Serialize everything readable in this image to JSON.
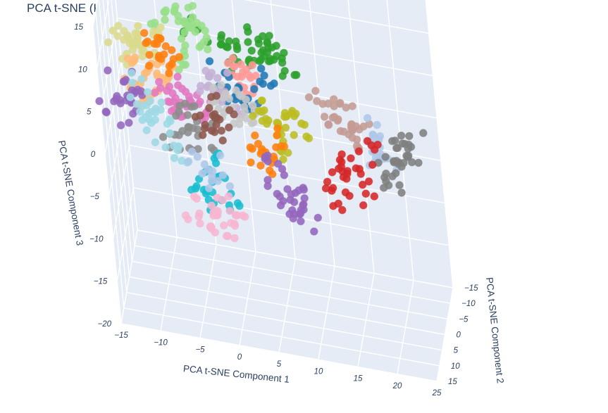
{
  "chart_data": {
    "type": "scatter",
    "title": "PCA t-SNE (K-Means)",
    "xlabel": "PCA t-SNE Component 1",
    "ylabel": "PCA t-SNE Component 2",
    "zlabel": "PCA t-SNE Component 3",
    "x_ticks": [
      "−15",
      "−10",
      "−5",
      "0",
      "5",
      "10",
      "15",
      "20",
      "25"
    ],
    "y_ticks": [
      "−15",
      "−10",
      "−5",
      "0",
      "5",
      "10",
      "15"
    ],
    "z_ticks": [
      "−20",
      "−15",
      "−10",
      "−5",
      "0",
      "5",
      "10",
      "15"
    ],
    "xlim": [
      -15,
      25
    ],
    "ylim": [
      -15,
      15
    ],
    "zlim": [
      -20,
      15
    ],
    "legend": "none",
    "grid": true,
    "series": [
      {
        "color": "#2ca02c",
        "x": [
          -3,
          2,
          5,
          8,
          4,
          6,
          1,
          7
        ],
        "y": [
          2,
          5,
          8,
          3,
          9,
          6,
          4,
          7
        ],
        "z": [
          12,
          11,
          13,
          10,
          14,
          12,
          11,
          13
        ]
      },
      {
        "color": "#98df8a",
        "x": [
          -8,
          -5,
          -3,
          -6,
          -2,
          -4
        ],
        "y": [
          3,
          5,
          1,
          6,
          4,
          2
        ],
        "z": [
          12,
          13,
          11,
          10,
          12,
          14
        ]
      },
      {
        "color": "#dbdb8d",
        "x": [
          -12,
          -10,
          -11,
          -9,
          -13
        ],
        "y": [
          6,
          4,
          5,
          7,
          3
        ],
        "z": [
          11,
          9,
          10,
          12,
          8
        ]
      },
      {
        "color": "#ff9896",
        "x": [
          2,
          4,
          3
        ],
        "y": [
          6,
          8,
          5
        ],
        "z": [
          9,
          10,
          8
        ]
      },
      {
        "color": "#1f77b4",
        "x": [
          0,
          3,
          5,
          2
        ],
        "y": [
          4,
          6,
          3,
          5
        ],
        "z": [
          7,
          6,
          8,
          5
        ]
      },
      {
        "color": "#ffbb78",
        "x": [
          -11,
          -9,
          -10,
          -8,
          -12
        ],
        "y": [
          3,
          1,
          2,
          4,
          0
        ],
        "z": [
          6,
          4,
          5,
          7,
          3
        ]
      },
      {
        "color": "#ff7f0e",
        "x": [
          -9,
          -7,
          -8
        ],
        "y": [
          2,
          0,
          1
        ],
        "z": [
          9,
          8,
          7
        ]
      },
      {
        "color": "#e377c2",
        "x": [
          -7,
          -5,
          -6,
          -4,
          -8
        ],
        "y": [
          1,
          0,
          2,
          -1,
          1
        ],
        "z": [
          3,
          2,
          4,
          1,
          3
        ]
      },
      {
        "color": "#c5b0d5",
        "x": [
          -2,
          0,
          -1
        ],
        "y": [
          3,
          2,
          1
        ],
        "z": [
          5,
          4,
          6
        ]
      },
      {
        "color": "#c7c7c7",
        "x": [
          1,
          3,
          2,
          0
        ],
        "y": [
          5,
          4,
          3,
          6
        ],
        "z": [
          4,
          5,
          3,
          6
        ]
      },
      {
        "color": "#bcbd22",
        "x": [
          6,
          8,
          7,
          9,
          5
        ],
        "y": [
          2,
          4,
          3,
          1,
          5
        ],
        "z": [
          3,
          4,
          1,
          2,
          5
        ]
      },
      {
        "color": "#c49c94",
        "x": [
          14,
          16,
          15,
          17,
          13
        ],
        "y": [
          6,
          8,
          7,
          5,
          9
        ],
        "z": [
          6,
          5,
          7,
          4,
          8
        ]
      },
      {
        "color": "#aec7e8",
        "x": [
          19,
          20,
          18
        ],
        "y": [
          6,
          7,
          5
        ],
        "z": [
          3,
          2,
          4
        ]
      },
      {
        "color": "#7f7f7f",
        "x": [
          22,
          21,
          23,
          20,
          22
        ],
        "y": [
          2,
          3,
          1,
          4,
          0
        ],
        "z": [
          1,
          0,
          2,
          -1,
          1
        ]
      },
      {
        "color": "#9467bd",
        "x": [
          -14,
          -13,
          -12,
          -15
        ],
        "y": [
          -3,
          -2,
          -4,
          -1
        ],
        "z": [
          1,
          0,
          2,
          -1
        ]
      },
      {
        "color": "#8c8c8c",
        "x": [
          -6,
          -4,
          -5,
          -7
        ],
        "y": [
          -2,
          -1,
          -3,
          0
        ],
        "z": [
          -1,
          -2,
          0,
          -3
        ]
      },
      {
        "color": "#8c564b",
        "x": [
          -3,
          -1,
          -2
        ],
        "y": [
          1,
          0,
          2
        ],
        "z": [
          1,
          2,
          0
        ]
      },
      {
        "color": "#9edae5",
        "x": [
          -10,
          -9,
          -11,
          -8,
          -12
        ],
        "y": [
          -4,
          -3,
          -5,
          -2,
          -6
        ],
        "z": [
          -2,
          -3,
          -1,
          -4,
          0
        ]
      },
      {
        "color": "#17becf",
        "x": [
          -4,
          -2,
          -3,
          -5
        ],
        "y": [
          -6,
          -5,
          -7,
          -4
        ],
        "z": [
          -9,
          -10,
          -8,
          -11
        ]
      },
      {
        "color": "#aec7e8",
        "x": [
          -5,
          -3
        ],
        "y": [
          -5,
          -6
        ],
        "z": [
          -7,
          -8
        ]
      },
      {
        "color": "#f7b6d2",
        "x": [
          -5,
          -3,
          -4,
          -6,
          -2
        ],
        "y": [
          -9,
          -8,
          -10,
          -7,
          -9
        ],
        "z": [
          -14,
          -15,
          -13,
          -14,
          -15
        ]
      },
      {
        "color": "#ff7f0e",
        "x": [
          3,
          5,
          4
        ],
        "y": [
          -3,
          -2,
          -4
        ],
        "z": [
          -3,
          -2,
          -4
        ]
      },
      {
        "color": "#9467bd",
        "x": [
          5,
          7,
          6,
          8,
          4
        ],
        "y": [
          -6,
          -5,
          -7,
          -4,
          -8
        ],
        "z": [
          -9,
          -8,
          -10,
          -11,
          -7
        ]
      },
      {
        "color": "#d62728",
        "x": [
          14,
          16,
          15,
          13,
          17
        ],
        "y": [
          -1,
          0,
          -2,
          1,
          -3
        ],
        "z": [
          -3,
          -4,
          -2,
          -5,
          -1
        ]
      }
    ]
  }
}
